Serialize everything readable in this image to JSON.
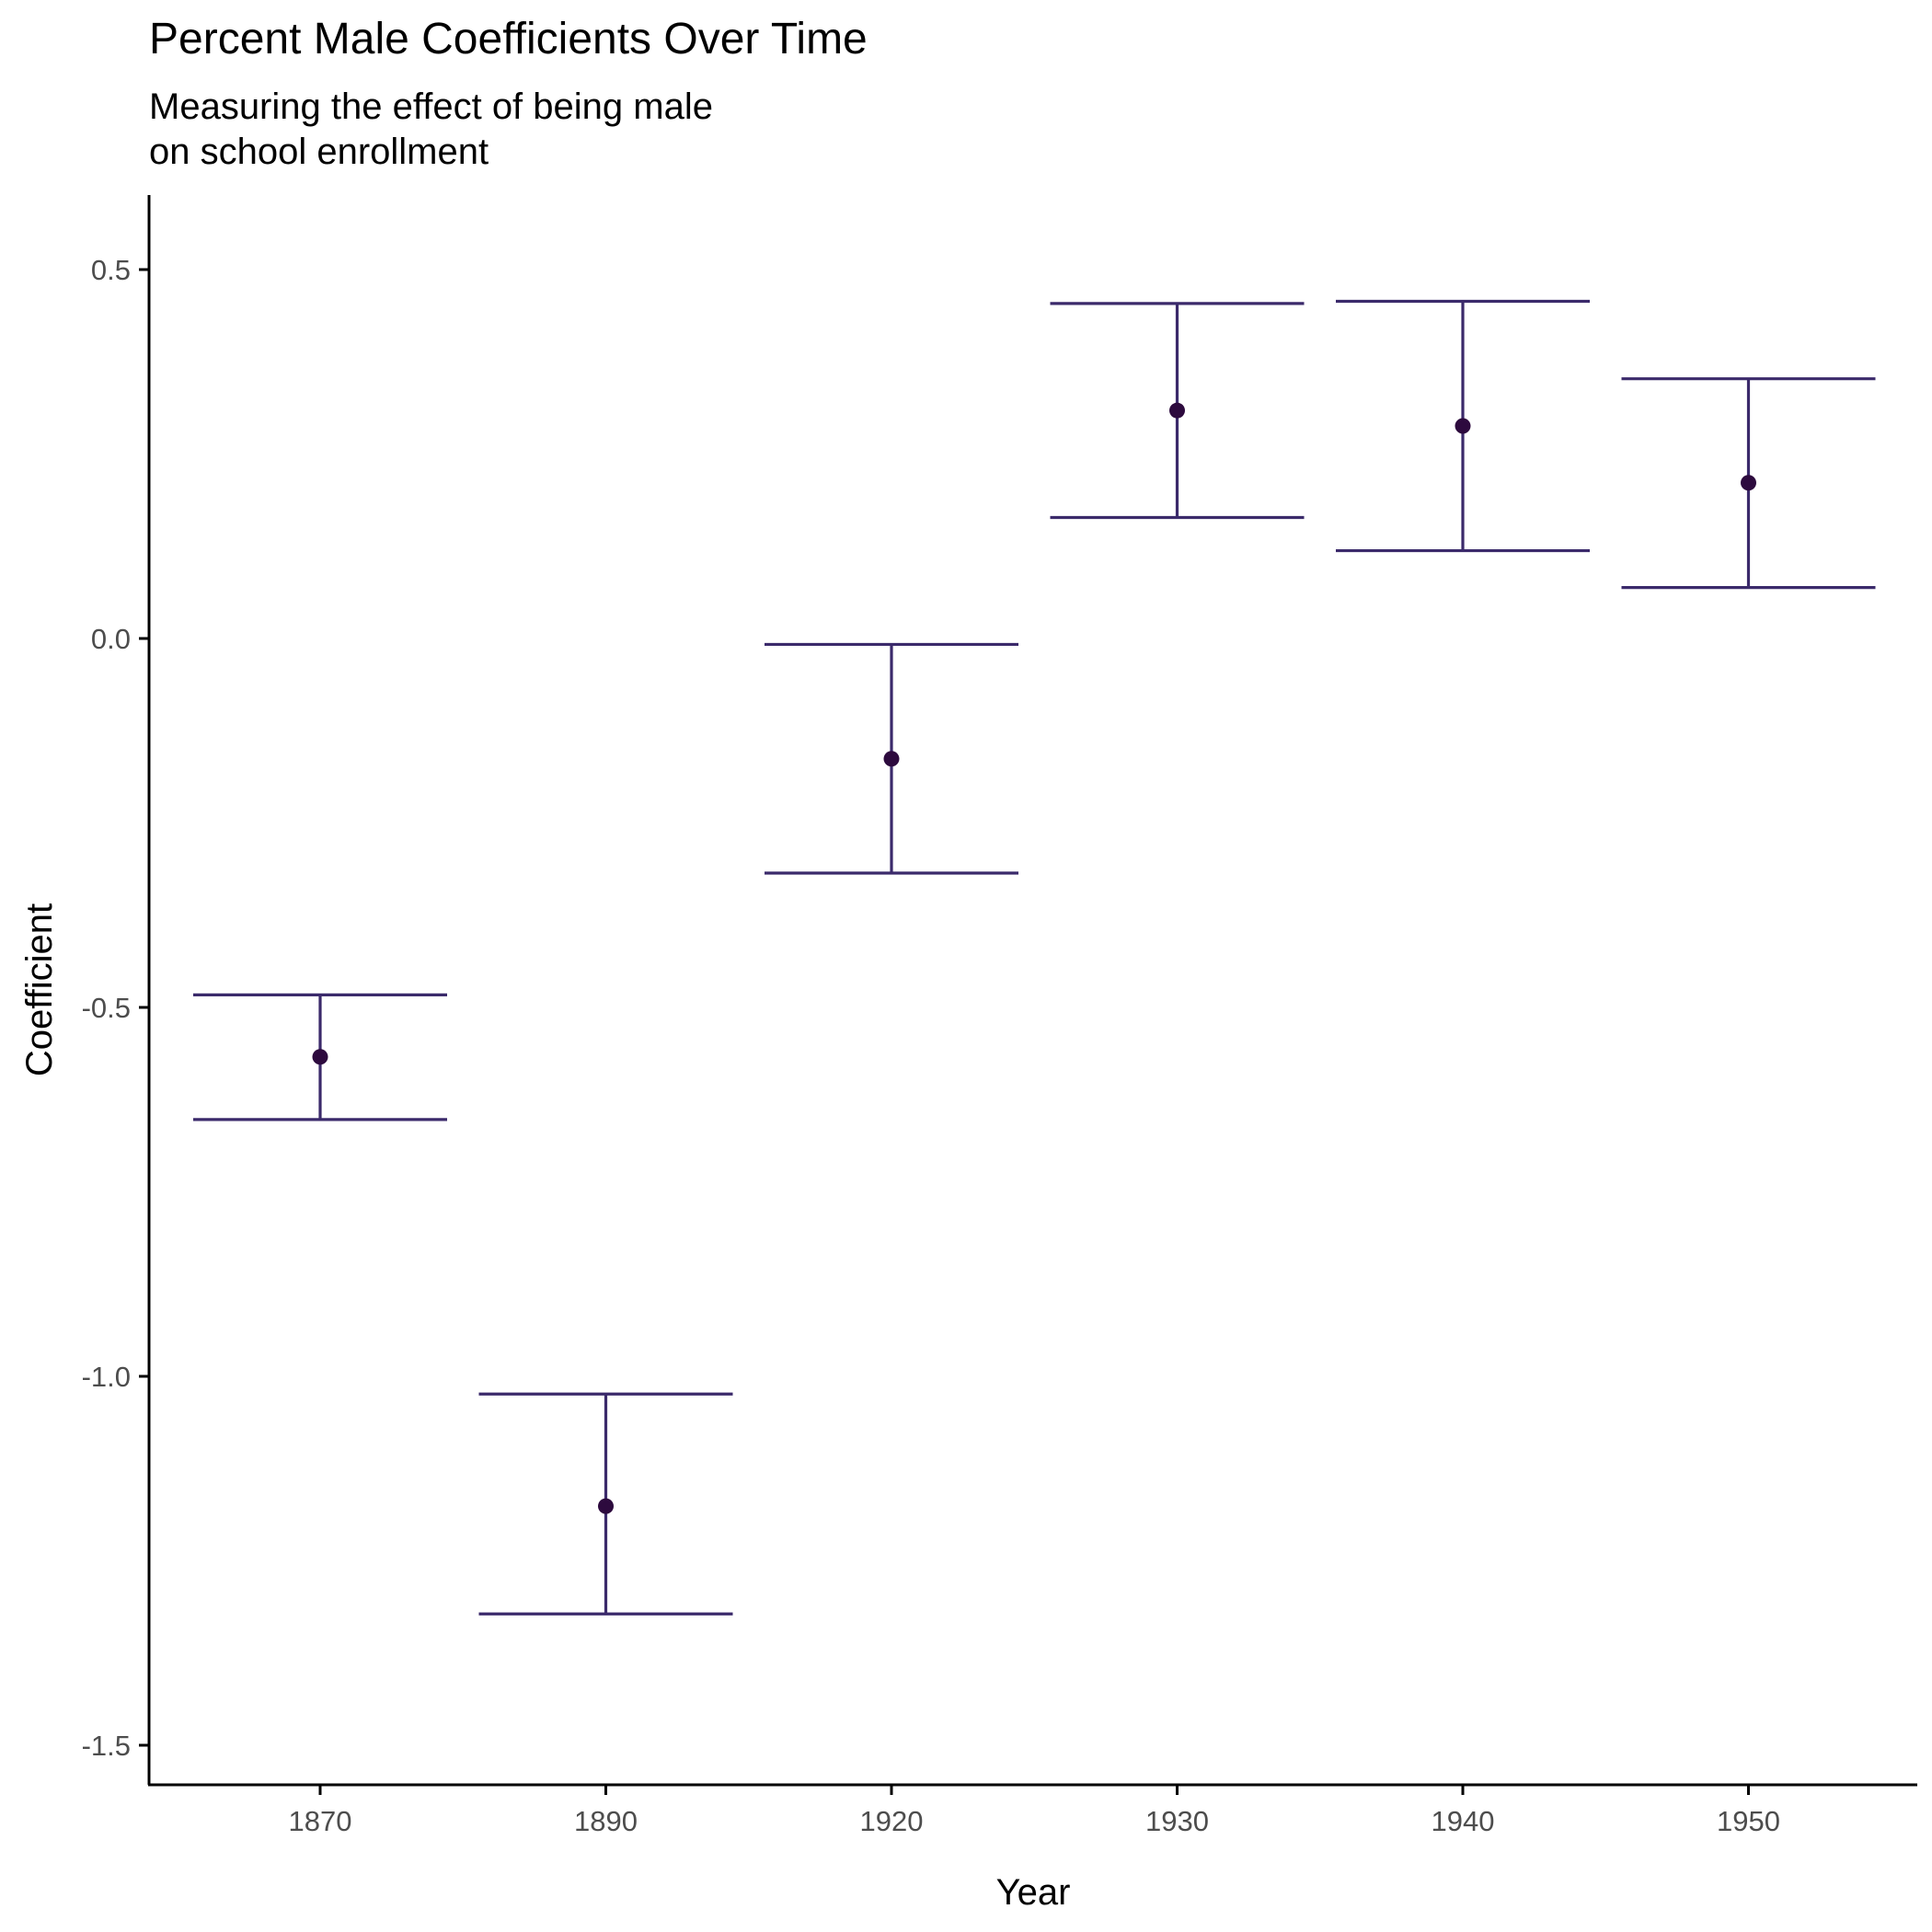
{
  "colors": {
    "errorbar": "#3b2a6b",
    "point": "#2d0a3e",
    "axis": "#000000",
    "tick_label": "#4d4d4d"
  },
  "chart_data": {
    "type": "scatter",
    "title": "Percent Male Coefficients Over Time",
    "subtitle_lines": [
      "Measuring the effect of being male",
      "on school enrollment"
    ],
    "xlabel": "Year",
    "ylabel": "Coefficient",
    "categories": [
      "1870",
      "1890",
      "1920",
      "1930",
      "1940",
      "1950"
    ],
    "series": [
      {
        "estimate": [
          -0.567,
          -1.176,
          -0.163,
          0.309,
          0.288,
          0.211
        ],
        "lower": [
          -0.652,
          -1.322,
          -0.318,
          0.164,
          0.119,
          0.069
        ],
        "upper": [
          -0.483,
          -1.024,
          -0.008,
          0.454,
          0.457,
          0.352
        ]
      }
    ],
    "ylim": [
      -1.6,
      0.6
    ],
    "yticks": [
      0.5,
      0.0,
      -0.5,
      -1.0,
      -1.5
    ],
    "ytick_labels": [
      "0.5",
      "0.0",
      "-0.5",
      "-1.0",
      "-1.5"
    ],
    "grid": false,
    "legend": "none"
  }
}
